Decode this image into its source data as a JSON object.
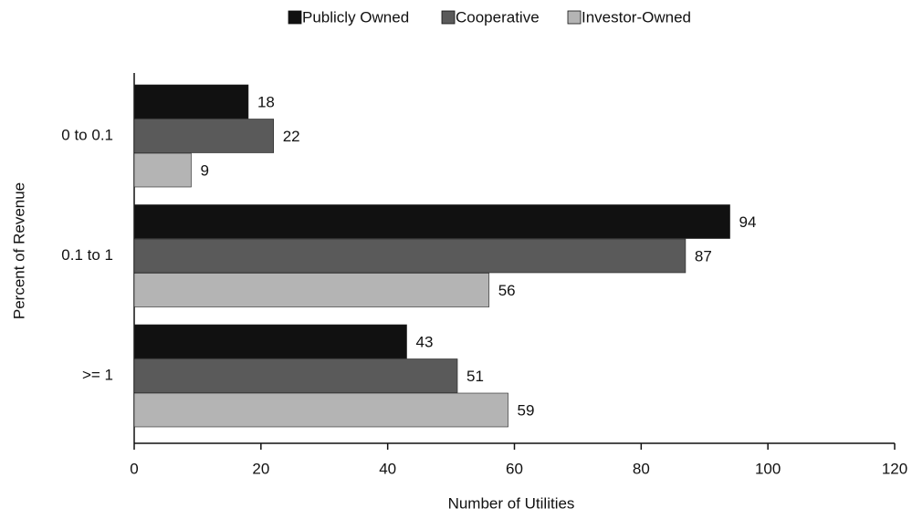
{
  "chart_data": {
    "type": "bar",
    "orientation": "horizontal",
    "categories": [
      "0 to 0.1",
      "0.1 to 1",
      ">= 1"
    ],
    "series": [
      {
        "name": "Publicly Owned",
        "color": "#111111",
        "values": [
          18,
          94,
          43
        ]
      },
      {
        "name": "Cooperative",
        "color": "#5a5a5a",
        "values": [
          22,
          87,
          51
        ]
      },
      {
        "name": "Investor-Owned",
        "color": "#b4b4b4",
        "values": [
          9,
          56,
          59
        ]
      }
    ],
    "xlabel": "Number of Utilities",
    "ylabel": "Percent of Revenue",
    "xlim": [
      0,
      120
    ],
    "xticks": [
      0,
      20,
      40,
      60,
      80,
      100,
      120
    ],
    "legend": "top"
  }
}
